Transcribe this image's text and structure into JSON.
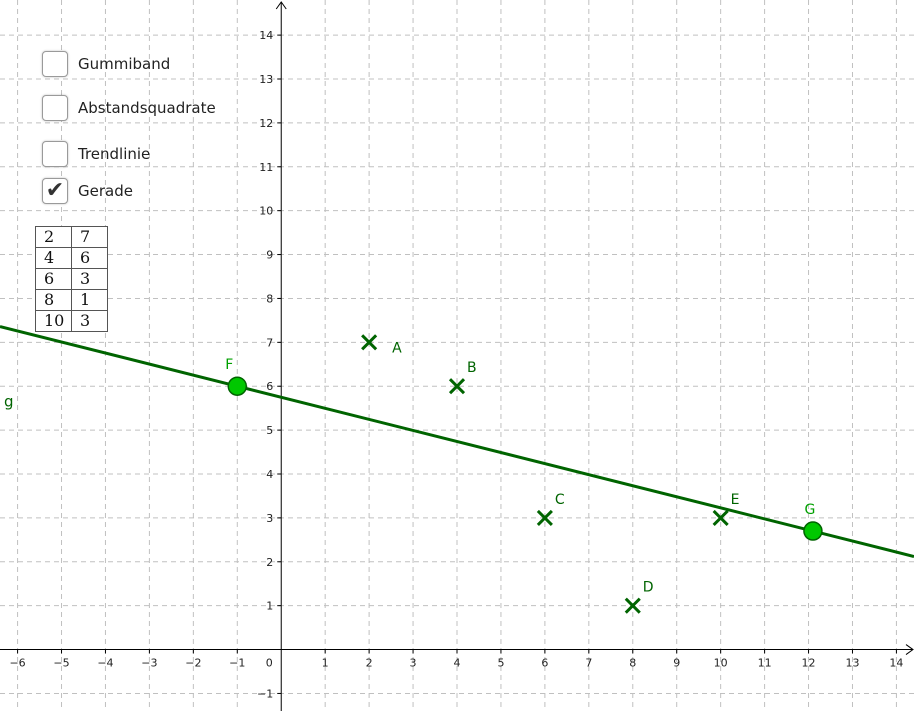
{
  "checkboxes": [
    {
      "label": "Gummiband",
      "checked": false
    },
    {
      "label": "Abstandsquadrate",
      "checked": false
    },
    {
      "label": "Trendlinie",
      "checked": false
    },
    {
      "label": "Gerade",
      "checked": true
    }
  ],
  "table": [
    [
      "2",
      "7"
    ],
    [
      "4",
      "6"
    ],
    [
      "6",
      "3"
    ],
    [
      "8",
      "1"
    ],
    [
      "10",
      "3"
    ]
  ],
  "chart_data": {
    "type": "scatter",
    "xlim": [
      -6.4,
      14.4
    ],
    "ylim": [
      -1.4,
      14.8
    ],
    "x_ticks": [
      -6,
      -5,
      -4,
      -3,
      -2,
      -1,
      0,
      1,
      2,
      3,
      4,
      5,
      6,
      7,
      8,
      9,
      10,
      11,
      12,
      13,
      14
    ],
    "y_ticks": [
      -1,
      1,
      2,
      3,
      4,
      5,
      6,
      7,
      8,
      9,
      10,
      11,
      12,
      13,
      14
    ],
    "grid": true,
    "points": [
      {
        "label": "A",
        "x": 2,
        "y": 7
      },
      {
        "label": "B",
        "x": 4,
        "y": 6
      },
      {
        "label": "C",
        "x": 6,
        "y": 3
      },
      {
        "label": "D",
        "x": 8,
        "y": 1
      },
      {
        "label": "E",
        "x": 10,
        "y": 3
      }
    ],
    "handles": [
      {
        "label": "F",
        "x": -1,
        "y": 6
      },
      {
        "label": "G",
        "x": 12.1,
        "y": 2.7
      }
    ],
    "line_label": "g"
  },
  "colors": {
    "point": "#006400",
    "line": "#006400",
    "handle_fill": "#00c800",
    "handle_label": "#00a000",
    "grid": "#c0c0c0",
    "axis": "#000000"
  }
}
